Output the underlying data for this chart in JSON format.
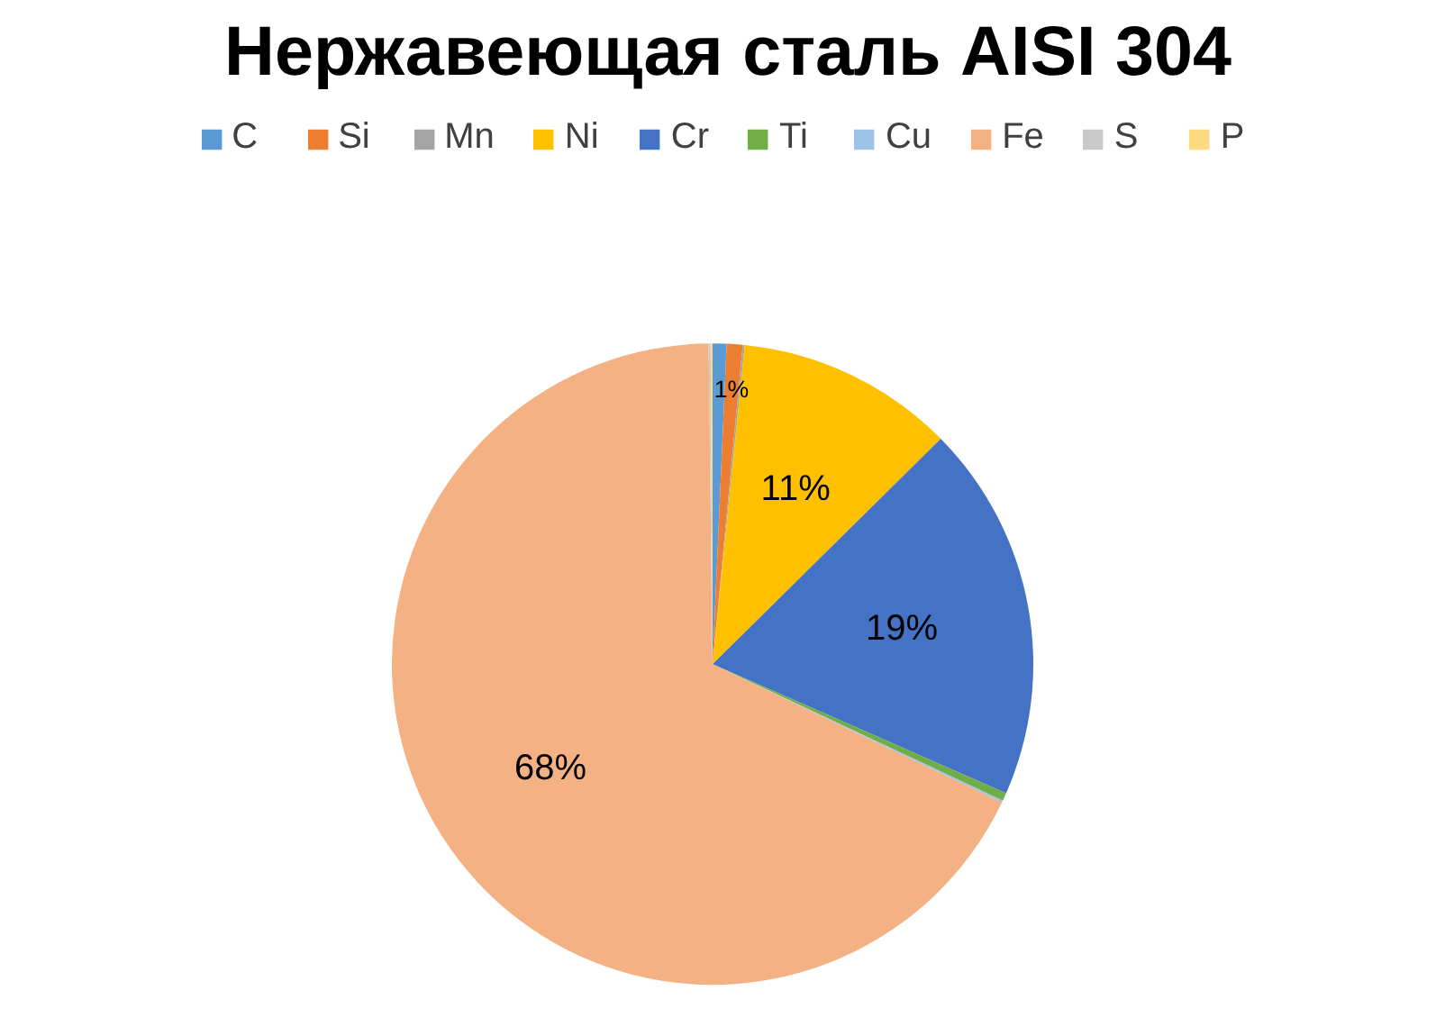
{
  "chart_data": {
    "type": "pie",
    "title": "Нержавеющая сталь AISI 304",
    "categories": [
      "C",
      "Si",
      "Mn",
      "Ni",
      "Cr",
      "Ti",
      "Cu",
      "Fe",
      "S",
      "P"
    ],
    "values": [
      0.7,
      0.8,
      0.1,
      11,
      19,
      0.4,
      0.1,
      67.7,
      0.1,
      0.1
    ],
    "colors": [
      "#5b9bd5",
      "#ed7d31",
      "#a5a5a5",
      "#ffc000",
      "#4472c4",
      "#70ad47",
      "#9dc3e6",
      "#f4b183",
      "#c9c9c9",
      "#ffd980"
    ],
    "value_labels": [
      null,
      "1%",
      null,
      "11%",
      "19%",
      null,
      null,
      "68%",
      null,
      null
    ],
    "legend": "top"
  }
}
